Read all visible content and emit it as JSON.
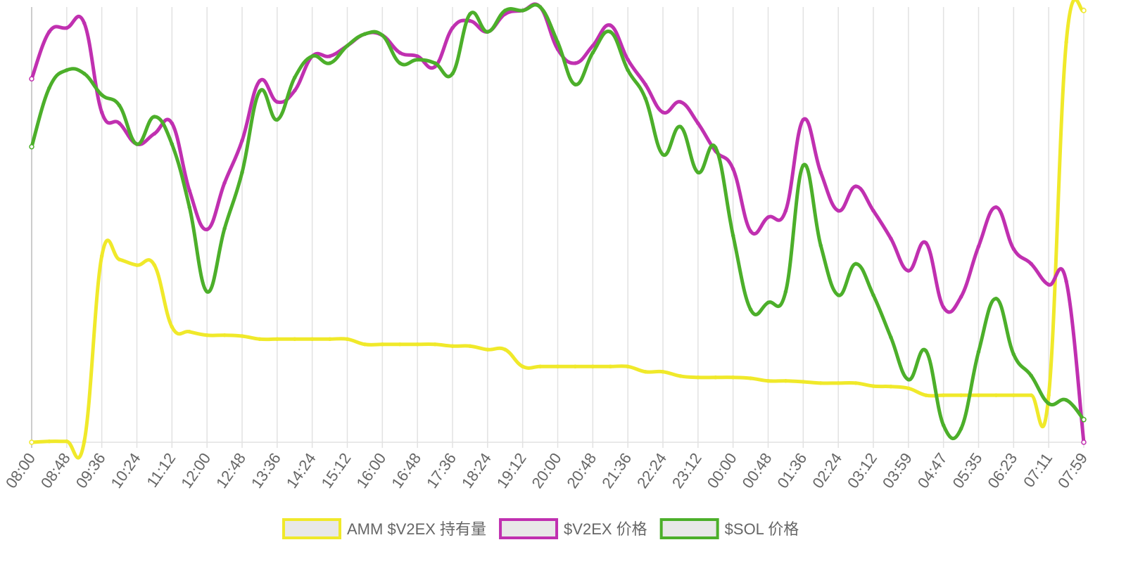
{
  "chart_data": {
    "type": "line",
    "categories": [
      "08:00",
      null,
      "08:48",
      null,
      "09:36",
      null,
      "10:24",
      null,
      "11:12",
      null,
      "12:00",
      null,
      "12:48",
      null,
      "13:36",
      null,
      "14:24",
      null,
      "15:12",
      null,
      "16:00",
      null,
      "16:48",
      null,
      "17:36",
      null,
      "18:24",
      null,
      "19:12",
      null,
      "20:00",
      null,
      "20:48",
      null,
      "21:36",
      null,
      "22:24",
      null,
      "23:12",
      null,
      "00:00",
      null,
      "00:48",
      null,
      "01:36",
      null,
      "02:24",
      null,
      "03:12",
      null,
      "03:59",
      null,
      "04:47",
      null,
      "05:35",
      null,
      "06:23",
      null,
      "07:11",
      null,
      "07:59"
    ],
    "ylim": [
      0,
      100
    ],
    "grid": true,
    "legend": "bottom",
    "series": [
      {
        "name": "AMM $V2EX 持有量",
        "color": "#f0e92a",
        "values": [
          0,
          0.2,
          0.2,
          0.2,
          42.8,
          42.0,
          40.7,
          40.7,
          26.5,
          25.4,
          24.6,
          24.6,
          24.4,
          23.7,
          23.7,
          23.7,
          23.7,
          23.7,
          23.7,
          22.5,
          22.5,
          22.5,
          22.5,
          22.5,
          22.1,
          22.1,
          21.3,
          21.3,
          17.4,
          17.4,
          17.4,
          17.4,
          17.4,
          17.4,
          17.4,
          16.2,
          16.2,
          15.2,
          14.9,
          14.9,
          14.9,
          14.7,
          14.1,
          14.1,
          13.9,
          13.6,
          13.6,
          13.6,
          12.9,
          12.8,
          12.4,
          10.8,
          10.8,
          10.8,
          10.8,
          10.8,
          10.8,
          10.8,
          10.8,
          91.9,
          99.2
        ]
      },
      {
        "name": "$V2EX 价格",
        "color": "#c030b0",
        "values": [
          83.5,
          94.3,
          95.2,
          96.3,
          75.8,
          73.3,
          68.5,
          70.9,
          73.3,
          57.8,
          48.9,
          59.6,
          69.3,
          83.0,
          78.2,
          80.8,
          88.7,
          88.7,
          91.1,
          93.8,
          93.5,
          89.5,
          88.7,
          86.3,
          95.2,
          96.8,
          94.3,
          98.4,
          99.2,
          100,
          90.3,
          87.1,
          91.1,
          95.8,
          87.9,
          82.2,
          75.8,
          78.2,
          73.3,
          66.9,
          62.8,
          48.5,
          51.7,
          53.2,
          74.1,
          62.0,
          53.2,
          58.8,
          53.2,
          46.8,
          39.4,
          45.8,
          31.0,
          33.4,
          45.0,
          54.0,
          44.4,
          41.0,
          36.2,
          37.0,
          0
        ]
      },
      {
        "name": "$SOL 价格",
        "color": "#4caf2a",
        "values": [
          67.9,
          81.4,
          85.5,
          84.7,
          79.8,
          77.4,
          68.5,
          74.8,
          68.5,
          54.0,
          34.6,
          49.1,
          62.0,
          80.6,
          74.1,
          83.8,
          88.7,
          87.1,
          91.1,
          93.8,
          93.5,
          87.1,
          87.9,
          87.1,
          84.7,
          98.4,
          94.3,
          99.2,
          99.2,
          100,
          91.9,
          82.2,
          89.5,
          94.3,
          85.5,
          79.0,
          66.1,
          72.5,
          62.0,
          67.7,
          47.5,
          30.5,
          32.1,
          34.6,
          63.6,
          45.2,
          33.8,
          41.0,
          33.8,
          24.1,
          14.4,
          21.0,
          3.9,
          3.1,
          20.8,
          33.0,
          20.2,
          15.3,
          8.9,
          9.7,
          5.2
        ]
      }
    ]
  }
}
